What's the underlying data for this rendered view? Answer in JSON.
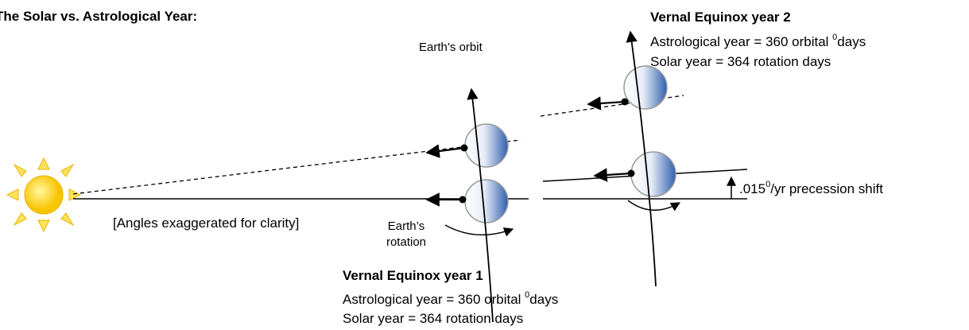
{
  "header": {
    "title": "The Solar vs. Astrological Year:"
  },
  "labels": {
    "orbit": "Earth’s orbit",
    "rotation_1": "Earth’s",
    "rotation_2": "rotation",
    "note": "[Angles exaggerated for clarity]",
    "shift": {
      "value": ".015",
      "sup": "0",
      "unit": "/yr  precession shift"
    }
  },
  "year2": {
    "title": "Vernal Equinox year 2",
    "astro": {
      "text": "Astrological year = 360 orbital",
      "sup": "0",
      "unit": "days"
    },
    "solar": "Solar year = 364 rotation days"
  },
  "year1": {
    "title": "Vernal Equinox year 1",
    "astro": {
      "text": "Astrological year = 360 orbital",
      "sup": "0",
      "unit": "days"
    },
    "solar": "Solar year = 364 rotation days"
  }
}
